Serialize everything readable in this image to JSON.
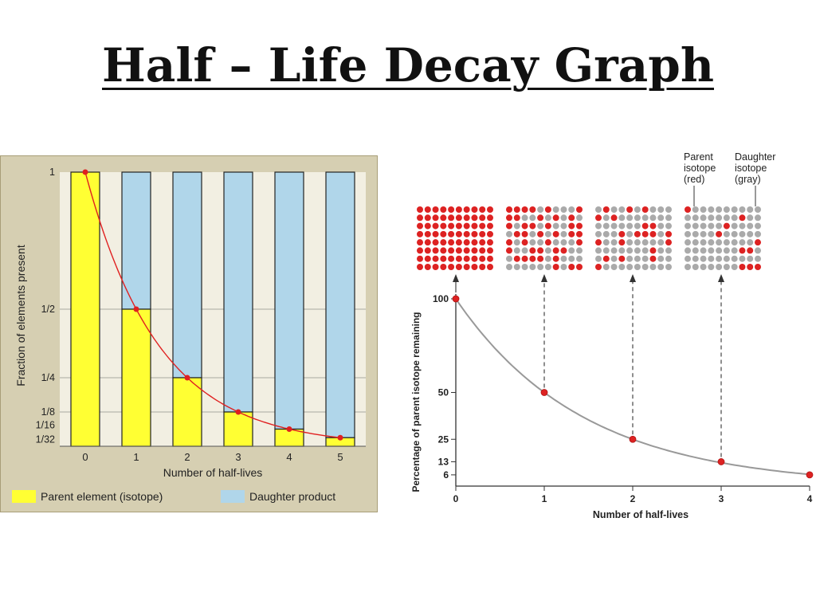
{
  "slide": {
    "title": "Half – Life Decay Graph"
  },
  "chart_data": [
    {
      "type": "bar",
      "title": "",
      "xlabel": "Number of half-lives",
      "ylabel": "Fraction of elements present",
      "categories": [
        "0",
        "1",
        "2",
        "3",
        "4",
        "5"
      ],
      "ylim": [
        0,
        1
      ],
      "y_ticks": [
        {
          "value": 1,
          "label": "1"
        },
        {
          "value": 0.5,
          "label": "1/2"
        },
        {
          "value": 0.25,
          "label": "1/4"
        },
        {
          "value": 0.125,
          "label": "1/8"
        },
        {
          "value": 0.0625,
          "label": "1/16"
        },
        {
          "value": 0.03125,
          "label": "1/32"
        }
      ],
      "series": [
        {
          "name": "Parent element (isotope)",
          "color": "#ffff33",
          "values": [
            1,
            0.5,
            0.25,
            0.125,
            0.0625,
            0.03125
          ]
        },
        {
          "name": "Daughter product",
          "color": "#b0d6ea",
          "values": [
            0,
            0.5,
            0.75,
            0.875,
            0.9375,
            0.96875
          ]
        }
      ],
      "curve": {
        "color": "#e02020",
        "values": [
          1,
          0.5,
          0.25,
          0.125,
          0.0625,
          0.03125
        ]
      },
      "stacked": true,
      "grid": true,
      "legend": {
        "position": "bottom"
      }
    },
    {
      "type": "line",
      "title": "",
      "xlabel": "Number of half-lives",
      "ylabel": "Percentage of parent isotope remaining",
      "x": [
        0,
        1,
        2,
        3,
        4
      ],
      "series": [
        {
          "values": [
            100,
            50,
            25,
            13,
            6
          ],
          "color": "#999999",
          "marker_color": "#dd2222"
        }
      ],
      "xlim": [
        0,
        4
      ],
      "ylim": [
        0,
        100
      ],
      "x_ticks": [
        "0",
        "1",
        "2",
        "3",
        "4"
      ],
      "y_ticks": [
        100,
        50,
        25,
        13,
        6
      ],
      "grid": false,
      "inset_grids": [
        {
          "half_lives": 0,
          "parent_fraction": 1
        },
        {
          "half_lives": 1,
          "parent_fraction": 0.5
        },
        {
          "half_lives": 2,
          "parent_fraction": 0.25
        },
        {
          "half_lives": 3,
          "parent_fraction": 0.125
        }
      ],
      "legend": {
        "parent": {
          "line1": "Parent",
          "line2": "isotope",
          "line3": "(red)",
          "color": "#dd2222"
        },
        "daughter": {
          "line1": "Daughter",
          "line2": "isotope",
          "line3": "(gray)",
          "color": "#aaaaaa"
        }
      }
    }
  ]
}
